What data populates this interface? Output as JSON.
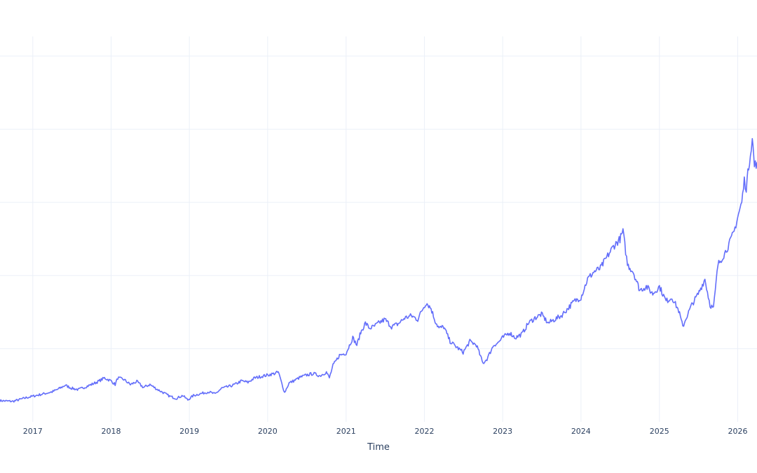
{
  "chart_data": {
    "type": "line",
    "title": "",
    "xlabel": "Time",
    "ylabel": "",
    "x_tick_labels": [
      "2017",
      "2018",
      "2019",
      "2020",
      "2021",
      "2022",
      "2023",
      "2024",
      "2025",
      "2026"
    ],
    "xlim": [
      "2016-08-01",
      "2026-04-01"
    ],
    "ylim": [
      0,
      5
    ],
    "y_gridlines": [
      1,
      2,
      3,
      4,
      5
    ],
    "y_tick_labels_visible": false,
    "grid": true,
    "legend": "none",
    "line_color": "#636efa",
    "series": [
      {
        "x": [
          "2016-08-01",
          "2016-10-01",
          "2016-12-01",
          "2017-02-01",
          "2017-04-01",
          "2017-05-01",
          "2017-06-01",
          "2017-07-01",
          "2017-08-01",
          "2017-10-01",
          "2017-11-01",
          "2017-12-01",
          "2018-01-01",
          "2018-01-20",
          "2018-02-01",
          "2018-03-01",
          "2018-04-01",
          "2018-05-01",
          "2018-06-01",
          "2018-07-01",
          "2018-08-01",
          "2018-09-01",
          "2018-10-01",
          "2018-11-01",
          "2018-12-01",
          "2018-12-25",
          "2019-01-20",
          "2019-03-01",
          "2019-04-01",
          "2019-05-01",
          "2019-06-01",
          "2019-07-01",
          "2019-08-01",
          "2019-09-01",
          "2019-10-01",
          "2019-11-01",
          "2019-12-01",
          "2020-01-01",
          "2020-02-01",
          "2020-02-20",
          "2020-03-20",
          "2020-04-10",
          "2020-05-01",
          "2020-06-01",
          "2020-07-01",
          "2020-08-01",
          "2020-09-01",
          "2020-10-01",
          "2020-10-15",
          "2020-11-01",
          "2020-12-01",
          "2021-01-01",
          "2021-02-01",
          "2021-02-20",
          "2021-03-10",
          "2021-04-01",
          "2021-04-20",
          "2021-05-10",
          "2021-06-01",
          "2021-07-01",
          "2021-08-01",
          "2021-09-01",
          "2021-10-01",
          "2021-11-01",
          "2021-12-01",
          "2021-12-25",
          "2022-01-10",
          "2022-02-01",
          "2022-02-20",
          "2022-03-10",
          "2022-04-01",
          "2022-05-01",
          "2022-06-01",
          "2022-07-01",
          "2022-08-01",
          "2022-09-01",
          "2022-10-01",
          "2022-10-20",
          "2022-11-20",
          "2022-12-10",
          "2023-01-01",
          "2023-02-01",
          "2023-03-01",
          "2023-04-01",
          "2023-05-01",
          "2023-06-01",
          "2023-07-01",
          "2023-08-01",
          "2023-09-01",
          "2023-10-01",
          "2023-11-01",
          "2023-12-01",
          "2024-01-01",
          "2024-02-01",
          "2024-03-01",
          "2024-04-01",
          "2024-05-01",
          "2024-06-01",
          "2024-07-01",
          "2024-07-15",
          "2024-08-05",
          "2024-09-01",
          "2024-10-01",
          "2024-11-01",
          "2024-12-01",
          "2025-01-01",
          "2025-02-01",
          "2025-03-01",
          "2025-04-01",
          "2025-04-20",
          "2025-05-10",
          "2025-06-01",
          "2025-07-01",
          "2025-08-01",
          "2025-08-25",
          "2025-09-10",
          "2025-10-01",
          "2025-11-01",
          "2025-11-25",
          "2025-12-15",
          "2026-01-01",
          "2026-01-20",
          "2026-02-01",
          "2026-02-10",
          "2026-02-25",
          "2026-03-10",
          "2026-03-20",
          "2026-04-01"
        ],
        "y": [
          0.29,
          0.28,
          0.33,
          0.37,
          0.41,
          0.45,
          0.5,
          0.46,
          0.44,
          0.51,
          0.55,
          0.6,
          0.56,
          0.51,
          0.6,
          0.58,
          0.51,
          0.55,
          0.47,
          0.51,
          0.45,
          0.4,
          0.35,
          0.32,
          0.36,
          0.3,
          0.36,
          0.39,
          0.41,
          0.38,
          0.46,
          0.48,
          0.51,
          0.56,
          0.54,
          0.6,
          0.62,
          0.64,
          0.66,
          0.68,
          0.4,
          0.53,
          0.56,
          0.61,
          0.64,
          0.66,
          0.63,
          0.68,
          0.6,
          0.77,
          0.91,
          0.94,
          1.15,
          1.05,
          1.22,
          1.35,
          1.28,
          1.3,
          1.35,
          1.4,
          1.3,
          1.34,
          1.42,
          1.45,
          1.4,
          1.55,
          1.63,
          1.55,
          1.38,
          1.28,
          1.3,
          1.1,
          1.02,
          0.95,
          1.1,
          1.05,
          0.8,
          0.86,
          1.05,
          1.08,
          1.15,
          1.22,
          1.15,
          1.2,
          1.35,
          1.42,
          1.47,
          1.35,
          1.4,
          1.45,
          1.55,
          1.65,
          1.7,
          1.95,
          2.05,
          2.1,
          2.25,
          2.4,
          2.5,
          2.6,
          2.15,
          2.05,
          1.8,
          1.85,
          1.75,
          1.85,
          1.65,
          1.7,
          1.52,
          1.3,
          1.45,
          1.6,
          1.75,
          1.95,
          1.6,
          1.55,
          2.15,
          2.3,
          2.45,
          2.6,
          2.8,
          3.0,
          3.3,
          3.2,
          3.58,
          3.88,
          3.5,
          3.55
        ]
      }
    ]
  }
}
